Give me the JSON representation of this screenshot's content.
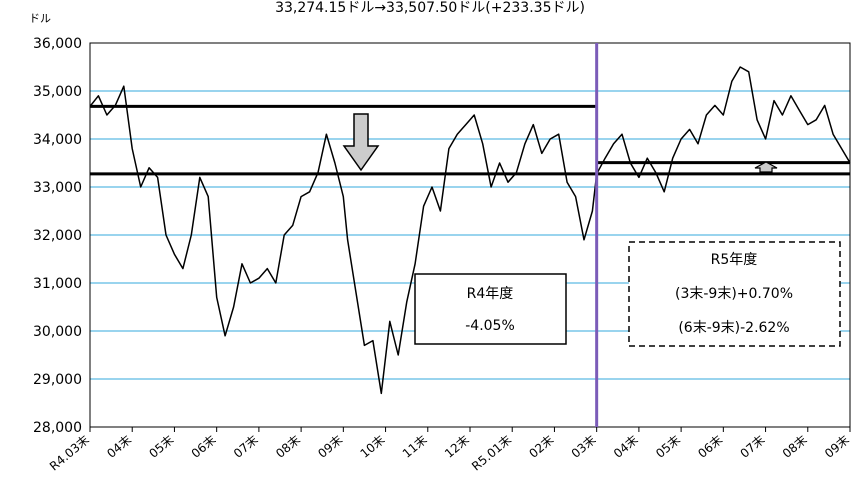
{
  "chart_data": {
    "type": "line",
    "title": "33,274.15ドル→33,507.50ドル(+233.35ドル)",
    "ylabel": "ドル",
    "ylim": [
      28000,
      36000
    ],
    "yticks": [
      "28,000",
      "29,000",
      "30,000",
      "31,000",
      "32,000",
      "33,000",
      "34,000",
      "35,000",
      "36,000"
    ],
    "grid": true,
    "categories": [
      "R4.03末",
      "04末",
      "05末",
      "06末",
      "07末",
      "08末",
      "09末",
      "10末",
      "11末",
      "12末",
      "R5.01末",
      "02末",
      "03末",
      "04末",
      "05末",
      "06末",
      "07末",
      "08末",
      "09末"
    ],
    "series": [
      {
        "x": [
          0,
          0.2,
          0.4,
          0.6,
          0.8,
          1.0,
          1.2,
          1.4,
          1.6,
          1.8,
          2.0,
          2.2,
          2.4,
          2.6,
          2.8,
          3.0,
          3.2,
          3.4,
          3.6,
          3.8,
          4.0,
          4.2,
          4.4,
          4.6,
          4.8,
          5.0,
          5.2,
          5.4,
          5.6,
          5.8,
          6.0,
          6.1,
          6.3,
          6.5,
          6.7,
          6.9,
          7.1,
          7.3,
          7.5,
          7.7,
          7.9,
          8.1,
          8.3,
          8.5,
          8.7,
          8.9,
          9.1,
          9.3,
          9.5,
          9.7,
          9.9,
          10.1,
          10.3,
          10.5,
          10.7,
          10.9,
          11.1,
          11.3,
          11.5,
          11.7,
          11.9,
          12.0,
          12.2,
          12.4,
          12.6,
          12.8,
          13.0,
          13.2,
          13.4,
          13.6,
          13.8,
          14.0,
          14.2,
          14.4,
          14.6,
          14.8,
          15.0,
          15.2,
          15.4,
          15.6,
          15.8,
          16.0,
          16.2,
          16.4,
          16.6,
          16.8,
          17.0,
          17.2,
          17.4,
          17.6,
          17.8,
          18.0
        ],
        "values": [
          34680,
          34900,
          34500,
          34700,
          35100,
          33800,
          33000,
          33400,
          33200,
          32000,
          31600,
          31300,
          32000,
          33200,
          32800,
          30700,
          29900,
          30500,
          31400,
          31000,
          31100,
          31300,
          31000,
          32000,
          32200,
          32800,
          32900,
          33300,
          34100,
          33500,
          32800,
          31900,
          30800,
          29700,
          29800,
          28700,
          30200,
          29500,
          30600,
          31400,
          32600,
          33000,
          32500,
          33800,
          34100,
          34300,
          34500,
          33900,
          33000,
          33500,
          33100,
          33300,
          33900,
          34300,
          33700,
          34000,
          34100,
          33100,
          32800,
          31900,
          32500,
          33274,
          33600,
          33900,
          34100,
          33500,
          33200,
          33600,
          33300,
          32900,
          33600,
          34000,
          34200,
          33900,
          34500,
          34700,
          34500,
          35200,
          35500,
          35400,
          34400,
          34000,
          34800,
          34500,
          34900,
          34600,
          34300,
          34400,
          34700,
          34100,
          33800,
          33507
        ]
      }
    ],
    "reference_lines": [
      {
        "y": 34680,
        "x_from": 0,
        "x_to": 12
      },
      {
        "y": 33274,
        "x_from": 0,
        "x_to": 18
      },
      {
        "y": 33507,
        "x_from": 12,
        "x_to": 18
      }
    ],
    "divider_x": 12,
    "colors": {
      "line": "#000000",
      "grid": "#33aadd",
      "divider": "#7b5cb8",
      "arrow_fill": "#cccccc",
      "arrow_stroke": "#000000"
    },
    "annotations": {
      "r4": {
        "title": "R4年度",
        "value": "-4.05%"
      },
      "r5": {
        "title": "R5年度",
        "line1": "(3末-9末)+0.70%",
        "line2": "(6末-9末)-2.62%"
      }
    }
  }
}
